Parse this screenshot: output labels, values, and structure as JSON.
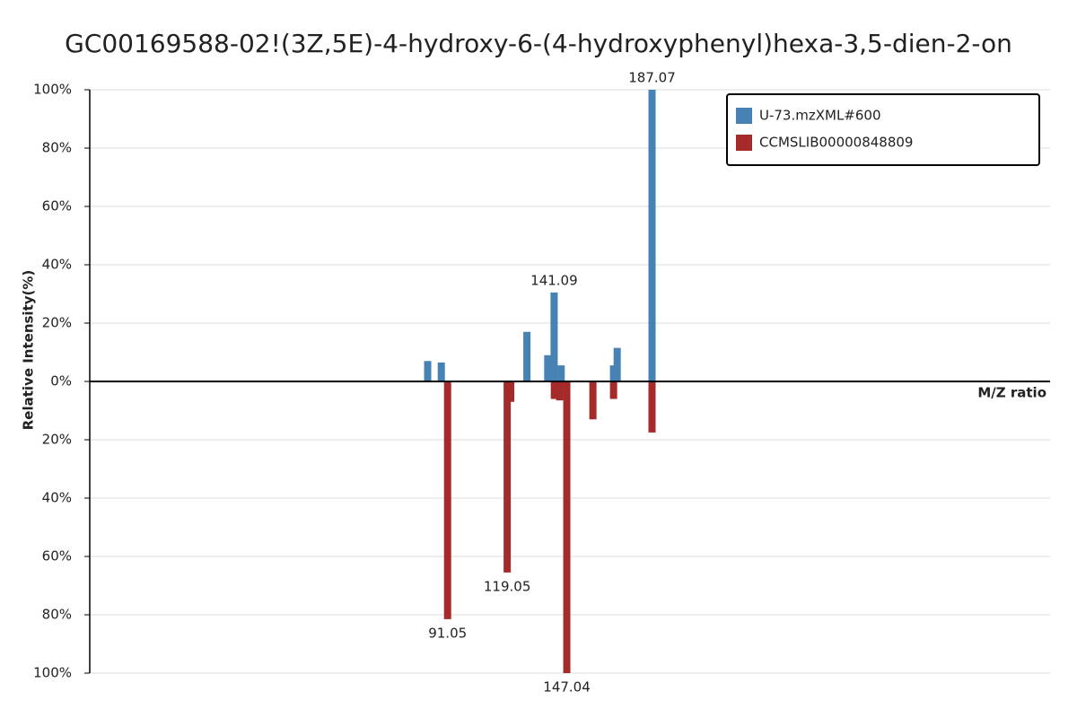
{
  "chart_data": {
    "type": "mirror",
    "title": "GC00169588-02!(3Z,5E)-4-hydroxy-6-(4-hydroxyphenyl)hexa-3,5-dien-2-on",
    "x_label": "M/Z ratio",
    "y_label": "Relative Intensity(%)",
    "xlim": [
      -77,
      374
    ],
    "ylim": [
      -100,
      100
    ],
    "yticks": [
      {
        "value": -100,
        "label": "100%"
      },
      {
        "value": -80,
        "label": "80%"
      },
      {
        "value": -60,
        "label": "60%"
      },
      {
        "value": -40,
        "label": "40%"
      },
      {
        "value": -20,
        "label": "20%"
      },
      {
        "value": 0,
        "label": "0%"
      },
      {
        "value": 20,
        "label": "20%"
      },
      {
        "value": 40,
        "label": "40%"
      },
      {
        "value": 60,
        "label": "60%"
      },
      {
        "value": 80,
        "label": "80%"
      },
      {
        "value": 100,
        "label": "100%"
      }
    ],
    "grid": true,
    "legend": "top-right",
    "series": [
      {
        "name": "U-73.mzXML#600",
        "color": "#4682b4",
        "x": [
          81.7,
          88.1,
          128.3,
          138.1,
          141.09,
          144.4,
          169.0,
          170.7,
          187.07
        ],
        "values": [
          7,
          6.5,
          17,
          9,
          30.5,
          5.5,
          5.5,
          11.5,
          100
        ],
        "x_labels": [
          null,
          null,
          null,
          null,
          "141.09",
          null,
          null,
          null,
          "187.07"
        ]
      },
      {
        "name": "CCMSLIB00000848809",
        "color": "#a52a2a",
        "x": [
          91.05,
          119.05,
          120.7,
          141.2,
          143.7,
          147.04,
          159.3,
          169.0,
          187.07
        ],
        "values": [
          -81.5,
          -65.5,
          -7,
          -6,
          -6.5,
          -100,
          -13,
          -6,
          -17.5
        ],
        "x_labels": [
          "91.05",
          "119.05",
          null,
          null,
          null,
          "147.04",
          null,
          null,
          null
        ]
      }
    ]
  }
}
